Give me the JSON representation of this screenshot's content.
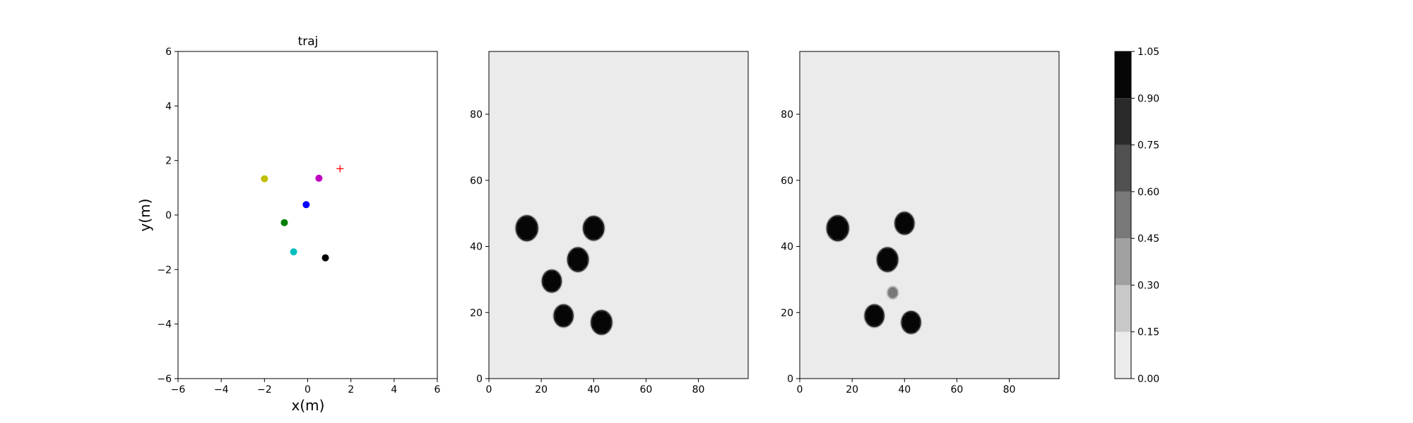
{
  "chart_data": [
    {
      "type": "scatter",
      "title": "traj",
      "xlabel": "x(m)",
      "ylabel": "y(m)",
      "xlim": [
        -6,
        6
      ],
      "ylim": [
        -6,
        6
      ],
      "x_ticks": [
        "−6",
        "−4",
        "−2",
        "0",
        "2",
        "4",
        "6"
      ],
      "y_ticks": [
        "−6",
        "−4",
        "−2",
        "0",
        "2",
        "4",
        "6"
      ],
      "grid": false,
      "points": [
        {
          "x": -2.0,
          "y": 1.33,
          "color": "#bfbf00",
          "marker": "circle"
        },
        {
          "x": 0.52,
          "y": 1.35,
          "color": "#bf00bf",
          "marker": "circle"
        },
        {
          "x": -0.07,
          "y": 0.38,
          "color": "#0000ff",
          "marker": "circle"
        },
        {
          "x": -1.08,
          "y": -0.28,
          "color": "#008000",
          "marker": "circle"
        },
        {
          "x": -0.65,
          "y": -1.35,
          "color": "#00bfbf",
          "marker": "circle"
        },
        {
          "x": 0.82,
          "y": -1.57,
          "color": "#000000",
          "marker": "circle"
        }
      ],
      "goal": {
        "x": 1.5,
        "y": 1.7,
        "color": "#ff0000",
        "marker": "plus"
      }
    },
    {
      "type": "heatmap",
      "title": "",
      "xlabel": "",
      "ylabel": "",
      "xlim": [
        0,
        99
      ],
      "ylim": [
        0,
        99
      ],
      "x_ticks": [
        "0",
        "20",
        "40",
        "60",
        "80"
      ],
      "y_ticks": [
        "0",
        "20",
        "40",
        "60",
        "80"
      ],
      "background_value": 0.0,
      "blobs": [
        {
          "x": 14.5,
          "y": 45.5,
          "r": 4.0,
          "value": 1.0
        },
        {
          "x": 40.0,
          "y": 45.5,
          "r": 3.8,
          "value": 1.0
        },
        {
          "x": 34.0,
          "y": 36.0,
          "r": 3.8,
          "value": 1.0
        },
        {
          "x": 24.0,
          "y": 29.5,
          "r": 3.5,
          "value": 1.0
        },
        {
          "x": 28.5,
          "y": 19.0,
          "r": 3.5,
          "value": 1.0
        },
        {
          "x": 43.0,
          "y": 17.0,
          "r": 3.8,
          "value": 1.0
        }
      ]
    },
    {
      "type": "heatmap",
      "title": "",
      "xlabel": "",
      "ylabel": "",
      "xlim": [
        0,
        99
      ],
      "ylim": [
        0,
        99
      ],
      "x_ticks": [
        "0",
        "20",
        "40",
        "60",
        "80"
      ],
      "y_ticks": [
        "0",
        "20",
        "40",
        "60",
        "80"
      ],
      "background_value": 0.0,
      "blobs": [
        {
          "x": 14.5,
          "y": 45.5,
          "r": 4.0,
          "value": 1.0
        },
        {
          "x": 40.0,
          "y": 47.0,
          "r": 3.5,
          "value": 1.0
        },
        {
          "x": 33.5,
          "y": 36.0,
          "r": 3.8,
          "value": 1.0
        },
        {
          "x": 28.5,
          "y": 19.0,
          "r": 3.5,
          "value": 1.0
        },
        {
          "x": 42.5,
          "y": 17.0,
          "r": 3.5,
          "value": 1.0
        },
        {
          "x": 35.5,
          "y": 26.0,
          "r": 1.8,
          "value": 0.5
        }
      ]
    }
  ],
  "colorbar": {
    "levels": [
      0.0,
      0.15,
      0.3,
      0.45,
      0.6,
      0.75,
      0.9,
      1.05
    ],
    "tick_labels": [
      "0.00",
      "0.15",
      "0.30",
      "0.45",
      "0.60",
      "0.75",
      "0.90",
      "1.05"
    ],
    "band_colors": [
      "#ebebeb",
      "#c8c8c8",
      "#a0a0a0",
      "#787878",
      "#505050",
      "#2a2a2a",
      "#060606"
    ]
  }
}
